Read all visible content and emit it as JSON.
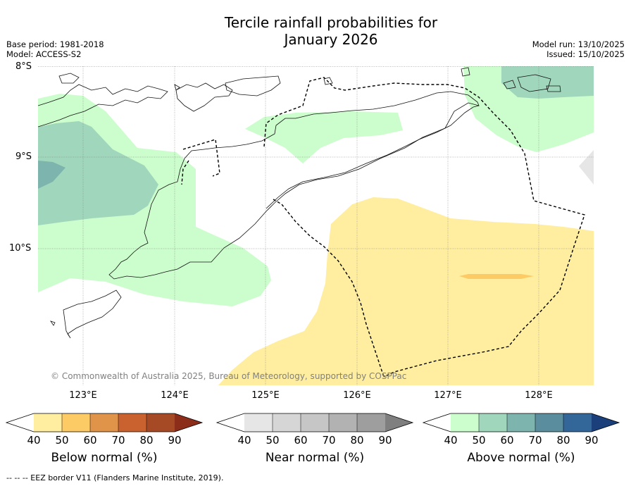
{
  "header": {
    "title_line1": "Tercile rainfall probabilities for",
    "title_line2": "January 2026",
    "base_period": "Base period: 1981-2018",
    "model": "Model: ACCESS-S2",
    "model_run": "Model run: 13/10/2025",
    "issued": "Issued: 15/10/2025"
  },
  "map": {
    "lat_labels": [
      "8°S",
      "9°S",
      "10°S"
    ],
    "lon_labels": [
      "123°E",
      "124°E",
      "125°E",
      "126°E",
      "127°E",
      "128°E"
    ],
    "copyright": "© Commonwealth of Australia 2025, Bureau of Meteorology, supported by COSPPac"
  },
  "colorbars": [
    {
      "name": "below",
      "title": "Below normal (%)",
      "ticks": [
        "40",
        "50",
        "60",
        "70",
        "80",
        "90"
      ],
      "colors": [
        "#ffeea0",
        "#fdcb65",
        "#e0944a",
        "#c9622f",
        "#a64a26"
      ],
      "extend_color": "#8c2d19"
    },
    {
      "name": "near",
      "title": "Near normal (%)",
      "ticks": [
        "40",
        "50",
        "60",
        "70",
        "80",
        "90"
      ],
      "colors": [
        "#e6e6e6",
        "#d6d6d6",
        "#c6c6c6",
        "#b2b2b2",
        "#9e9e9e"
      ],
      "extend_color": "#7f7f7f"
    },
    {
      "name": "above",
      "title": "Above normal (%)",
      "ticks": [
        "40",
        "50",
        "60",
        "70",
        "80",
        "90"
      ],
      "colors": [
        "#ccfdcc",
        "#a0d6bb",
        "#7db4ad",
        "#5a8e9e",
        "#336699"
      ],
      "extend_color": "#1a3f7a"
    }
  ],
  "footnote": "--  --  -- EEZ border V11 (Flanders Marine Institute, 2019).",
  "colors": {
    "above_40": "#ccfdcc",
    "above_50": "#a0d6bb",
    "above_60": "#7db4ad",
    "below_40": "#ffeea0",
    "below_50": "#fdcb65",
    "near_40": "#e6e6e6"
  }
}
